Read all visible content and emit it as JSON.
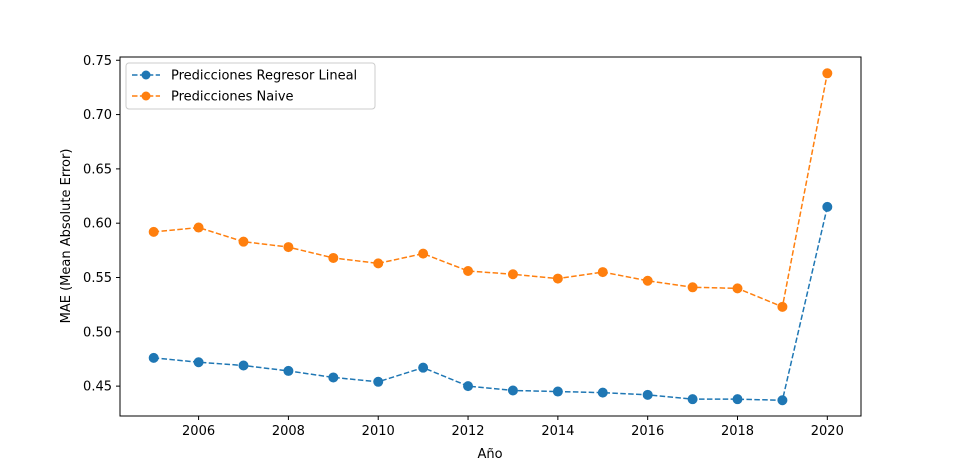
{
  "chart_data": {
    "type": "line",
    "title": "",
    "xlabel": "Año",
    "ylabel": "MAE (Mean Absolute Error)",
    "x": [
      2005,
      2006,
      2007,
      2008,
      2009,
      2010,
      2011,
      2012,
      2013,
      2014,
      2015,
      2016,
      2017,
      2018,
      2019,
      2020
    ],
    "xlim": [
      2004.25,
      2020.75
    ],
    "ylim": [
      0.4225,
      0.753
    ],
    "xticks": [
      2006,
      2008,
      2010,
      2012,
      2014,
      2016,
      2018,
      2020
    ],
    "xtick_labels": [
      "2006",
      "2008",
      "2010",
      "2012",
      "2014",
      "2016",
      "2018",
      "2020"
    ],
    "yticks": [
      0.45,
      0.5,
      0.55,
      0.6,
      0.65,
      0.7,
      0.75
    ],
    "ytick_labels": [
      "0.45",
      "0.50",
      "0.55",
      "0.60",
      "0.65",
      "0.70",
      "0.75"
    ],
    "grid": false,
    "legend_position": "top-left",
    "series": [
      {
        "name": "Predicciones Regresor Lineal",
        "color": "#1f77b4",
        "line_style": "dashed",
        "marker": "circle",
        "values": [
          0.476,
          0.472,
          0.469,
          0.464,
          0.458,
          0.454,
          0.467,
          0.45,
          0.446,
          0.445,
          0.444,
          0.442,
          0.438,
          0.438,
          0.437,
          0.615
        ]
      },
      {
        "name": "Predicciones Naive",
        "color": "#ff7f0e",
        "line_style": "dashed",
        "marker": "circle",
        "values": [
          0.592,
          0.596,
          0.583,
          0.578,
          0.568,
          0.563,
          0.572,
          0.556,
          0.553,
          0.549,
          0.555,
          0.547,
          0.541,
          0.54,
          0.523,
          0.738
        ]
      }
    ]
  }
}
